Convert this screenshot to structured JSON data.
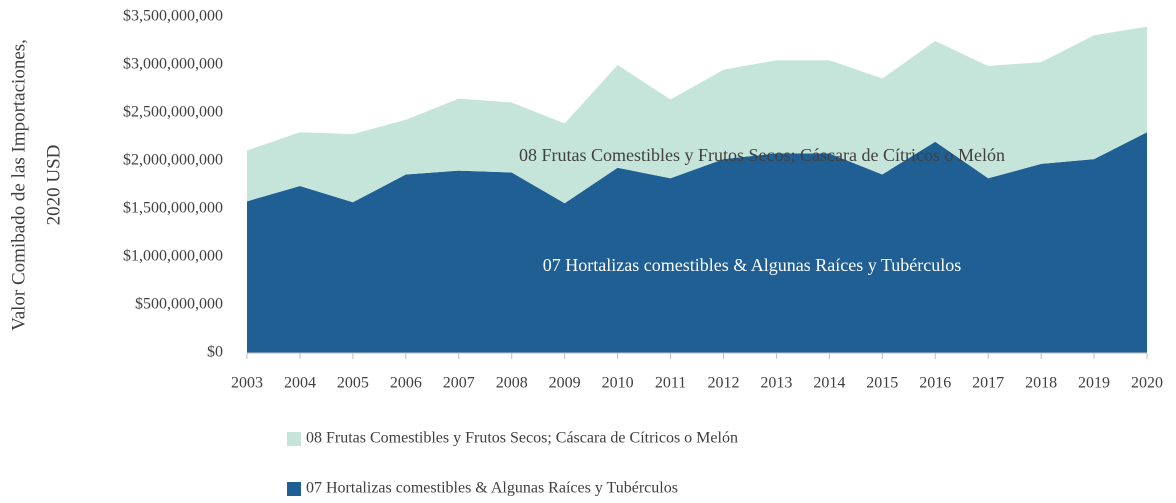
{
  "chart_data": {
    "type": "stacked_area",
    "ylabel": [
      "Valor Comibado de las Importaciones,",
      "2020 USD"
    ],
    "categories": [
      "2003",
      "2004",
      "2005",
      "2006",
      "2007",
      "2008",
      "2009",
      "2010",
      "2011",
      "2012",
      "2013",
      "2014",
      "2015",
      "2016",
      "2017",
      "2018",
      "2019",
      "2020"
    ],
    "series": [
      {
        "name": "07  Hortalizas comestibles & Algunas Raíces y Tubérculos",
        "color": "#1f5f94",
        "values": [
          1580000000,
          1740000000,
          1570000000,
          1860000000,
          1900000000,
          1880000000,
          1560000000,
          1930000000,
          1820000000,
          2020000000,
          2080000000,
          2080000000,
          1860000000,
          2200000000,
          1820000000,
          1970000000,
          2020000000,
          2300000000
        ]
      },
      {
        "name": "08 Frutas Comestibles y Frutos Secos; Cáscara de Cítricos o Melón",
        "color": "#c6e5da",
        "values": [
          530000000,
          560000000,
          710000000,
          570000000,
          750000000,
          730000000,
          830000000,
          1070000000,
          820000000,
          930000000,
          970000000,
          970000000,
          1000000000,
          1050000000,
          1170000000,
          1060000000,
          1290000000,
          1100000000
        ]
      }
    ],
    "ylim": [
      0,
      3500000000
    ],
    "yticks": [
      {
        "value": 0,
        "label": "$0"
      },
      {
        "value": 500000000,
        "label": "$500,000,000"
      },
      {
        "value": 1000000000,
        "label": "$1,000,000,000"
      },
      {
        "value": 1500000000,
        "label": "$1,500,000,000"
      },
      {
        "value": 2000000000,
        "label": "$2,000,000,000"
      },
      {
        "value": 2500000000,
        "label": "$2,500,000,000"
      },
      {
        "value": 3000000000,
        "label": "$3,000,000,000"
      },
      {
        "value": 3500000000,
        "label": "$3,500,000,000"
      }
    ],
    "grid": false,
    "legend": "bottom"
  }
}
